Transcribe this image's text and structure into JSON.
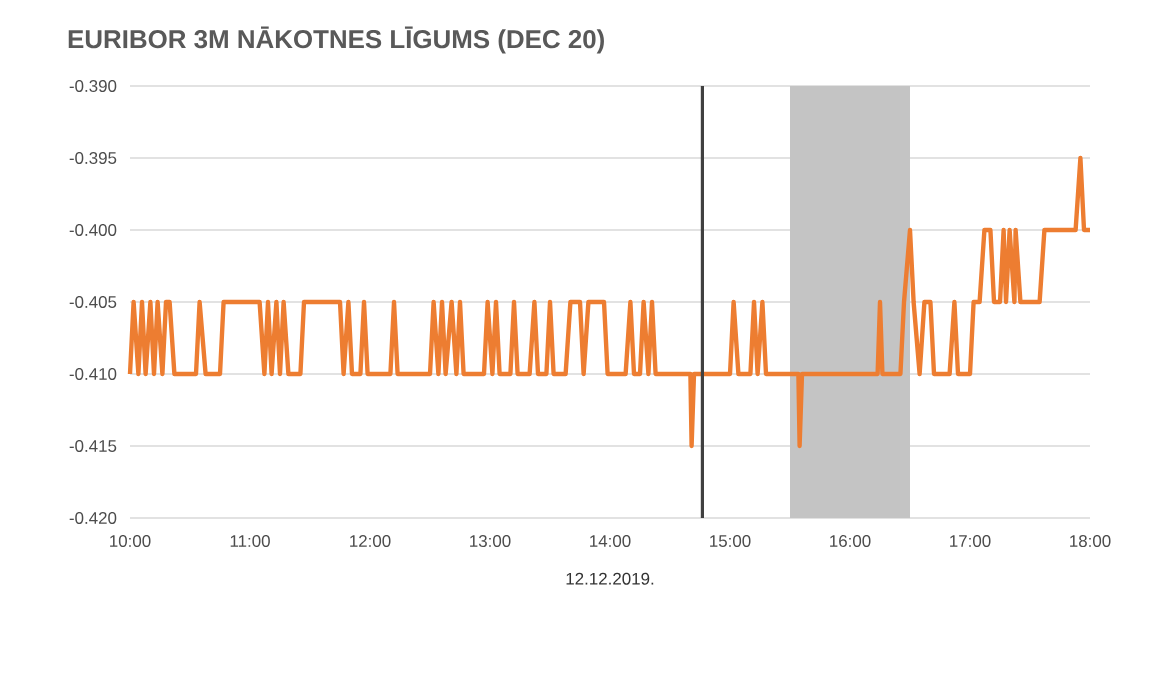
{
  "chart_data": {
    "type": "line",
    "title": "EURIBOR 3M NĀKOTNES LĪGUMS (DEC 20)",
    "xlabel": "12.12.2019.",
    "xlim": [
      10,
      18
    ],
    "xticks": [
      {
        "value": 10,
        "label": "10:00"
      },
      {
        "value": 11,
        "label": "11:00"
      },
      {
        "value": 12,
        "label": "12:00"
      },
      {
        "value": 13,
        "label": "13:00"
      },
      {
        "value": 14,
        "label": "14:00"
      },
      {
        "value": 15,
        "label": "15:00"
      },
      {
        "value": 16,
        "label": "16:00"
      },
      {
        "value": 17,
        "label": "17:00"
      },
      {
        "value": 18,
        "label": "18:00"
      }
    ],
    "ylim": [
      -0.42,
      -0.39
    ],
    "yticks": [
      {
        "value": -0.42,
        "label": "-0.420"
      },
      {
        "value": -0.415,
        "label": "-0.415"
      },
      {
        "value": -0.41,
        "label": "-0.410"
      },
      {
        "value": -0.405,
        "label": "-0.405"
      },
      {
        "value": -0.4,
        "label": "-0.400"
      },
      {
        "value": -0.395,
        "label": "-0.395"
      },
      {
        "value": -0.39,
        "label": "-0.390"
      }
    ],
    "grid": "y",
    "marker": "none",
    "line_style": "solid",
    "ref_lines": [
      {
        "axis": "x",
        "value": 14.77,
        "color": "#404040"
      }
    ],
    "bands": [
      {
        "axis": "x",
        "from": 15.5,
        "to": 16.5,
        "color": "#c4c4c4"
      }
    ],
    "series": [
      {
        "color": "#ed7d31",
        "x": [
          10.0,
          10.03,
          10.07,
          10.1,
          10.13,
          10.17,
          10.2,
          10.23,
          10.27,
          10.3,
          10.33,
          10.37,
          10.55,
          10.58,
          10.63,
          10.75,
          10.78,
          11.08,
          11.12,
          11.15,
          11.18,
          11.22,
          11.25,
          11.28,
          11.32,
          11.42,
          11.45,
          11.75,
          11.78,
          11.82,
          11.85,
          11.92,
          11.95,
          11.98,
          12.17,
          12.2,
          12.23,
          12.5,
          12.53,
          12.57,
          12.6,
          12.63,
          12.68,
          12.72,
          12.75,
          12.78,
          12.95,
          12.98,
          13.02,
          13.05,
          13.08,
          13.17,
          13.2,
          13.23,
          13.33,
          13.37,
          13.4,
          13.47,
          13.5,
          13.53,
          13.63,
          13.67,
          13.75,
          13.78,
          13.82,
          13.95,
          13.98,
          14.13,
          14.17,
          14.2,
          14.25,
          14.28,
          14.32,
          14.35,
          14.38,
          14.67,
          14.68,
          14.7,
          15.0,
          15.03,
          15.07,
          15.17,
          15.2,
          15.23,
          15.27,
          15.3,
          15.57,
          15.58,
          15.6,
          16.23,
          16.25,
          16.27,
          16.42,
          16.45,
          16.5,
          16.53,
          16.58,
          16.62,
          16.67,
          16.7,
          16.83,
          16.87,
          16.9,
          17.0,
          17.03,
          17.08,
          17.12,
          17.17,
          17.2,
          17.25,
          17.28,
          17.3,
          17.33,
          17.37,
          17.38,
          17.42,
          17.58,
          17.62,
          17.88,
          17.92,
          17.95,
          18.0
        ],
        "values": [
          -0.41,
          -0.405,
          -0.41,
          -0.405,
          -0.41,
          -0.405,
          -0.41,
          -0.405,
          -0.41,
          -0.405,
          -0.405,
          -0.41,
          -0.41,
          -0.405,
          -0.41,
          -0.41,
          -0.405,
          -0.405,
          -0.41,
          -0.405,
          -0.41,
          -0.405,
          -0.41,
          -0.405,
          -0.41,
          -0.41,
          -0.405,
          -0.405,
          -0.41,
          -0.405,
          -0.41,
          -0.41,
          -0.405,
          -0.41,
          -0.41,
          -0.405,
          -0.41,
          -0.41,
          -0.405,
          -0.41,
          -0.405,
          -0.41,
          -0.405,
          -0.41,
          -0.405,
          -0.41,
          -0.41,
          -0.405,
          -0.41,
          -0.405,
          -0.41,
          -0.41,
          -0.405,
          -0.41,
          -0.41,
          -0.405,
          -0.41,
          -0.41,
          -0.405,
          -0.41,
          -0.41,
          -0.405,
          -0.405,
          -0.41,
          -0.405,
          -0.405,
          -0.41,
          -0.41,
          -0.405,
          -0.41,
          -0.41,
          -0.405,
          -0.41,
          -0.405,
          -0.41,
          -0.41,
          -0.415,
          -0.41,
          -0.41,
          -0.405,
          -0.41,
          -0.41,
          -0.405,
          -0.41,
          -0.405,
          -0.41,
          -0.41,
          -0.415,
          -0.41,
          -0.41,
          -0.405,
          -0.41,
          -0.41,
          -0.405,
          -0.4,
          -0.405,
          -0.41,
          -0.405,
          -0.405,
          -0.41,
          -0.41,
          -0.405,
          -0.41,
          -0.41,
          -0.405,
          -0.405,
          -0.4,
          -0.4,
          -0.405,
          -0.405,
          -0.4,
          -0.405,
          -0.4,
          -0.405,
          -0.4,
          -0.405,
          -0.405,
          -0.4,
          -0.4,
          -0.395,
          -0.4,
          -0.4
        ]
      }
    ]
  }
}
